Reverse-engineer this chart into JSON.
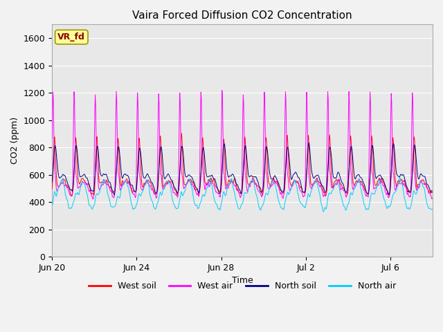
{
  "title": "Vaira Forced Diffusion CO2 Concentration",
  "xlabel": "Time",
  "ylabel": "CO2 (ppm)",
  "ylim": [
    0,
    1700
  ],
  "yticks": [
    0,
    200,
    400,
    600,
    800,
    1000,
    1200,
    1400,
    1600
  ],
  "legend_labels": [
    "West soil",
    "West air",
    "North soil",
    "North air"
  ],
  "legend_colors": [
    "#ff0000",
    "#ff00ff",
    "#00008b",
    "#00ccff"
  ],
  "annotation_text": "VR_fd",
  "annotation_color": "#8b0000",
  "annotation_bg": "#ffff99",
  "plot_bg": "#e8e8e8",
  "fig_bg": "#f2f2f2",
  "title_fontsize": 11,
  "axis_label_fontsize": 9,
  "tick_fontsize": 9
}
